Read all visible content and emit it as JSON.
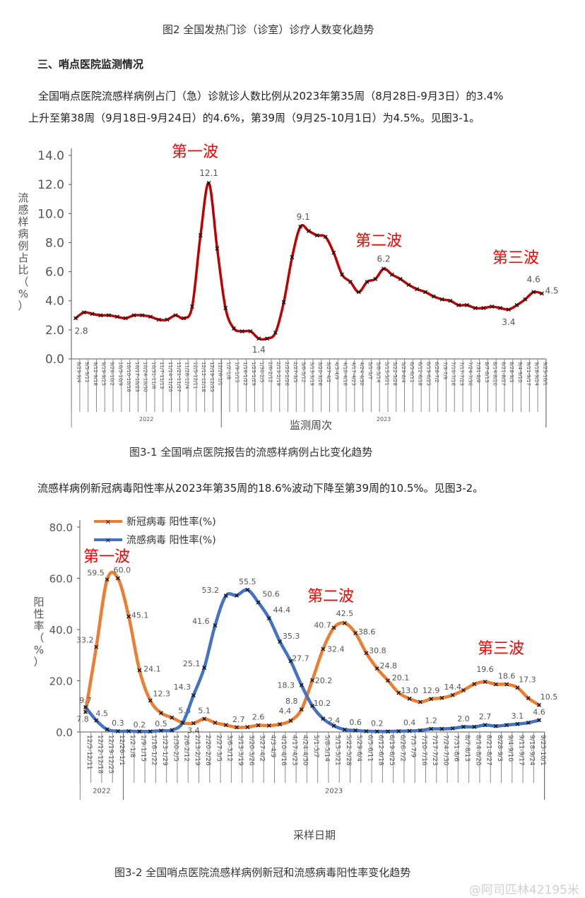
{
  "document": {
    "fig2_caption": "图2 全国发热门诊（诊室）诊疗人数变化趋势",
    "section_heading": "三、哨点医院监测情况",
    "paragraph1_line1": "全国哨点医院流感样病例占门（急）诊就诊人数比例从2023年第35周（8月28日-9月3日）的3.4%",
    "paragraph1_line2": "上升至第38周（9月18日-9月24日）的4.6%，第39周（9月25-10月1日）为4.5%。见图3-1。",
    "fig31_caption": "图3-1  全国哨点医院报告的流感样病例占比变化趋势",
    "paragraph2": "流感样病例新冠病毒阳性率从2023年第35周的18.6%波动下降至第39周的10.5%。见图3-2。",
    "fig32_caption": "图3-2 全国哨点医院流感样病例新冠和流感病毒阳性率变化趋势",
    "watermark": "@阿司匹林42195米"
  },
  "chart_data": [
    {
      "type": "line",
      "title": "",
      "xlabel": "监测周次",
      "ylabel": "流感样病例占比（%）",
      "ylim": [
        0,
        14
      ],
      "yticks": [
        "0.0",
        "2.0",
        "4.0",
        "6.0",
        "8.0",
        "10.0",
        "12.0",
        "14.0"
      ],
      "grid": false,
      "year_groups": [
        {
          "label": "2022",
          "count": 18
        },
        {
          "label": "2023",
          "count": 39
        }
      ],
      "categories": [
        "8/29-9/4",
        "9/5-9/11",
        "9/12-9/18",
        "9/19-9/25",
        "9/26-10/2",
        "10/3-10/9",
        "10/10-10/16",
        "10/17-10/23",
        "10/24-10/30",
        "10/31-11/6",
        "11/7-11/13",
        "11/14-11/20",
        "11/21-11/27",
        "11/28-12/4",
        "12/5-12/11",
        "12/12-12/18",
        "12/19-12/25",
        "12/26-1/1",
        "1/2-1/8",
        "1/9-1/15",
        "1/16-1/22",
        "1/23-1/29",
        "1/30-2/5",
        "2/6-2/12",
        "2/13-2/19",
        "2/20-2/26",
        "2/27-3/5",
        "3/6-3/12",
        "3/13-3/19",
        "3/20-3/26",
        "3/27-4/2",
        "4/3-4/9",
        "4/10-4/16",
        "4/17-4/23",
        "4/24-4/30",
        "5/1-5/7",
        "5/8-5/14",
        "5/15-5/21",
        "5/22-5/28",
        "5/29-6/4",
        "6/5-6/11",
        "6/12-6/18",
        "6/19-6/25",
        "6/26-7/2",
        "7/3-7/9",
        "7/10-7/16",
        "7/17-7/23",
        "7/24-7/30",
        "7/31-8/6",
        "8/7-8/13",
        "8/14-8/20",
        "8/21-8/27",
        "8/28-9/3",
        "9/4-9/10",
        "9/11-9/17",
        "9/18-9/24",
        "9/25-10/1"
      ],
      "series": [
        {
          "color": "#c00000",
          "values": [
            2.8,
            3.2,
            3.1,
            3.0,
            3.0,
            2.9,
            2.8,
            3.0,
            3.0,
            2.9,
            2.7,
            2.7,
            3.0,
            2.8,
            3.6,
            8.5,
            12.1,
            7.6,
            3.5,
            2.1,
            1.9,
            1.9,
            1.4,
            1.4,
            1.8,
            3.9,
            7.0,
            9.1,
            8.8,
            8.5,
            8.4,
            7.3,
            5.8,
            5.3,
            4.6,
            5.3,
            5.5,
            6.2,
            5.8,
            5.5,
            5.1,
            4.8,
            4.6,
            4.3,
            4.1,
            4.0,
            3.7,
            3.7,
            3.5,
            3.5,
            3.6,
            3.5,
            3.4,
            3.7,
            4.1,
            4.6,
            4.5
          ],
          "data_labels": [
            {
              "i": 0,
              "text": "2.8"
            },
            {
              "i": 16,
              "text": "12.1"
            },
            {
              "i": 22,
              "text": "1.4"
            },
            {
              "i": 27,
              "text": "9.1"
            },
            {
              "i": 37,
              "text": "6.2"
            },
            {
              "i": 52,
              "text": "3.4"
            },
            {
              "i": 55,
              "text": "4.6"
            },
            {
              "i": 56,
              "text": "4.5"
            }
          ]
        }
      ],
      "annotations": [
        {
          "text": "第一波",
          "color": "#ff0000"
        },
        {
          "text": "第二波",
          "color": "#ff0000"
        },
        {
          "text": "第三波",
          "color": "#ff0000"
        }
      ]
    },
    {
      "type": "line",
      "title": "",
      "xlabel": "采样日期",
      "ylabel": "阳性率（%）",
      "ylim": [
        0,
        80
      ],
      "yticks": [
        "0.0",
        "20.0",
        "40.0",
        "60.0",
        "80.0"
      ],
      "grid": false,
      "legend": "top-left",
      "year_groups": [
        {
          "label": "2022",
          "count": 4
        },
        {
          "label": "2023",
          "count": 39
        }
      ],
      "categories": [
        "12/5-12/11",
        "12/12-12/18",
        "12/19-12/25",
        "12/26-1/1",
        "1/2-1/8",
        "1/9-1/15",
        "1/16-1/22",
        "1/23-1/29",
        "1/30-2/5",
        "2/6-2/12",
        "2/13-2/19",
        "2/20-2/26",
        "2/27-3/5",
        "3/6-3/12",
        "3/13-3/19",
        "3/20-3/26",
        "3/27-4/2",
        "4/3-4/9",
        "4/10-4/16",
        "4/17-4/23",
        "4/24-4/30",
        "5/1-5/7",
        "5/8-5/14",
        "5/15-5/21",
        "5/22-5/28",
        "5/29-6/4",
        "6/5-6/11",
        "6/12-6/18",
        "6/19-6/25",
        "6/26-7/2",
        "7/3-7/9",
        "7/10-7/16",
        "7/17-7/23",
        "7/24-7/30",
        "7/31-8/6",
        "8/7-8/13",
        "8/14-8/20",
        "8/21-8/27",
        "8/28-9/3",
        "9/4-9/10",
        "9/11-9/17",
        "9/18-9/24",
        "9/25-10/1"
      ],
      "series": [
        {
          "name": "新冠病毒 阳性率(%)",
          "color": "#ed7d31",
          "values": [
            7.8,
            33.2,
            59.5,
            60.0,
            45.1,
            24.1,
            12.3,
            7.4,
            5.6,
            3.6,
            3.4,
            5.1,
            3.6,
            2.7,
            1.8,
            1.9,
            2.6,
            2.5,
            3.0,
            4.4,
            8.8,
            20.2,
            32.4,
            40.7,
            42.5,
            38.6,
            30.8,
            24.8,
            20.1,
            15.3,
            13.0,
            11.7,
            12.9,
            13.3,
            14.4,
            16.3,
            18.7,
            19.6,
            18.6,
            18.6,
            17.3,
            13.2,
            10.5
          ],
          "data_labels": [
            {
              "i": 0,
              "text": "7.8"
            },
            {
              "i": 1,
              "text": "33.2"
            },
            {
              "i": 2,
              "text": "59.5"
            },
            {
              "i": 3,
              "text": "60.0"
            },
            {
              "i": 4,
              "text": "45.1"
            },
            {
              "i": 5,
              "text": "24.1"
            },
            {
              "i": 6,
              "text": "12.3"
            },
            {
              "i": 8,
              "text": "5.6"
            },
            {
              "i": 10,
              "text": "3.4"
            },
            {
              "i": 11,
              "text": "5.1"
            },
            {
              "i": 13,
              "text": "2.7"
            },
            {
              "i": 16,
              "text": "2.6"
            },
            {
              "i": 19,
              "text": "4.4"
            },
            {
              "i": 20,
              "text": "8.8"
            },
            {
              "i": 21,
              "text": "20.2"
            },
            {
              "i": 22,
              "text": "32.4"
            },
            {
              "i": 23,
              "text": "40.7"
            },
            {
              "i": 24,
              "text": "42.5"
            },
            {
              "i": 25,
              "text": "38.6"
            },
            {
              "i": 26,
              "text": "30.8"
            },
            {
              "i": 27,
              "text": "24.8"
            },
            {
              "i": 28,
              "text": "20.1"
            },
            {
              "i": 30,
              "text": "13.0"
            },
            {
              "i": 32,
              "text": "12.9"
            },
            {
              "i": 34,
              "text": "14.4"
            },
            {
              "i": 37,
              "text": "19.6"
            },
            {
              "i": 39,
              "text": "18.6"
            },
            {
              "i": 40,
              "text": "17.3"
            },
            {
              "i": 42,
              "text": "10.5"
            }
          ]
        },
        {
          "name": "流感病毒 阳性率(%)",
          "color": "#4472c4",
          "values": [
            9.7,
            4.5,
            1.0,
            0.3,
            0.3,
            0.2,
            0.2,
            0.5,
            0.7,
            3.6,
            14.3,
            25.1,
            41.6,
            53.2,
            53.3,
            55.5,
            50.6,
            44.4,
            35.3,
            27.7,
            18.3,
            10.2,
            5.2,
            2.4,
            0.9,
            0.6,
            0.3,
            0.2,
            0.2,
            0.3,
            0.4,
            0.6,
            1.2,
            1.2,
            1.4,
            2.0,
            2.0,
            2.7,
            2.3,
            2.7,
            3.1,
            3.6,
            4.6
          ],
          "data_labels": [
            {
              "i": 0,
              "text": "9.7"
            },
            {
              "i": 1,
              "text": "4.5"
            },
            {
              "i": 3,
              "text": "0.3"
            },
            {
              "i": 5,
              "text": "0.2"
            },
            {
              "i": 7,
              "text": "0.5"
            },
            {
              "i": 10,
              "text": "14.3"
            },
            {
              "i": 11,
              "text": "25.1"
            },
            {
              "i": 12,
              "text": "41.6"
            },
            {
              "i": 13,
              "text": "53.2"
            },
            {
              "i": 15,
              "text": "55.5"
            },
            {
              "i": 16,
              "text": "50.6"
            },
            {
              "i": 17,
              "text": "44.4"
            },
            {
              "i": 18,
              "text": "35.3"
            },
            {
              "i": 19,
              "text": "27.7"
            },
            {
              "i": 20,
              "text": "18.3"
            },
            {
              "i": 21,
              "text": "10.2"
            },
            {
              "i": 23,
              "text": "2.4"
            },
            {
              "i": 25,
              "text": "0.6"
            },
            {
              "i": 27,
              "text": "0.2"
            },
            {
              "i": 30,
              "text": "0.4"
            },
            {
              "i": 32,
              "text": "1.2"
            },
            {
              "i": 35,
              "text": "2.0"
            },
            {
              "i": 37,
              "text": "2.7"
            },
            {
              "i": 40,
              "text": "3.1"
            },
            {
              "i": 42,
              "text": "4.6"
            }
          ]
        }
      ],
      "annotations": [
        {
          "text": "第一波",
          "color": "#ff0000"
        },
        {
          "text": "第二波",
          "color": "#ff0000"
        },
        {
          "text": "第三波",
          "color": "#ff0000"
        }
      ]
    }
  ]
}
